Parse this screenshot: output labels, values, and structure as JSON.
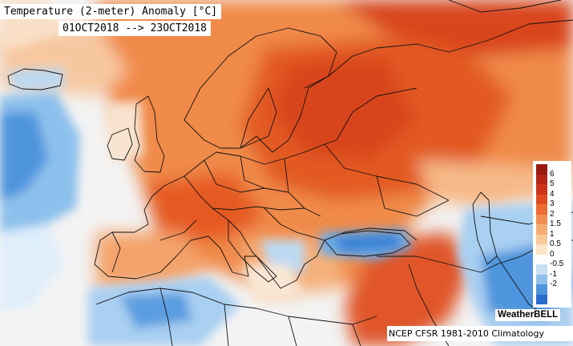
{
  "title": "Temperature (2-meter) Anomaly   [°C]",
  "date_range": "01OCT2018 --> 23OCT2018",
  "legend": {
    "ticks": [
      "6",
      "5",
      "4",
      "3",
      "2",
      "1.5",
      "1",
      "0.5",
      "0",
      "-0.5",
      "-1",
      "-2"
    ],
    "colors": [
      "#9b1a10",
      "#b62617",
      "#cd3419",
      "#e04a1d",
      "#ec6a30",
      "#f38e52",
      "#f6ad74",
      "#f8c99a",
      "#fbe6c8",
      "#fdfdfd",
      "#c7dff5",
      "#8fc0ec",
      "#4f95dd",
      "#2b6bcb"
    ]
  },
  "brand": "WeatherBELL",
  "source": "NCEP  CFSR  1981-2010  Climatology",
  "palette": {
    "deep_red": "#c8321a",
    "red": "#e04a1d",
    "orange": "#f07a3c",
    "light_orange": "#f6ad74",
    "peach": "#f9d7b4",
    "white": "#fbf8f4",
    "light_blue": "#bcd9f3",
    "blue": "#6aaae6",
    "dark_blue": "#3a82d6",
    "border": "#111111"
  },
  "icons": {
    "map": "europe-anomaly-map"
  }
}
